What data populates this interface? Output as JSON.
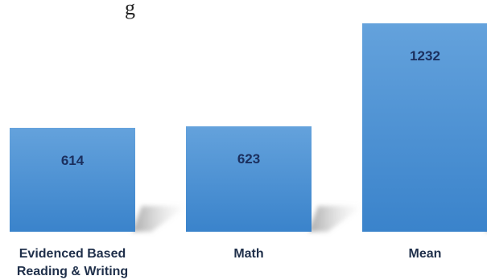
{
  "title_fragment": "g",
  "chart_data": {
    "type": "bar",
    "categories": [
      [
        "Evidenced Based",
        "Reading & Writing"
      ],
      [
        "Math"
      ],
      [
        "Mean"
      ]
    ],
    "values": [
      614,
      623,
      1232
    ],
    "value_labels": [
      "614",
      "623",
      "1232"
    ],
    "ylim": [
      0,
      1370
    ],
    "grid": false,
    "legend": "none",
    "colors": {
      "bar_top": "#64a2dc",
      "bar_bottom": "#3a83cb",
      "value_text": "#1b2f5e",
      "category_text": "#1f2f4a"
    }
  }
}
